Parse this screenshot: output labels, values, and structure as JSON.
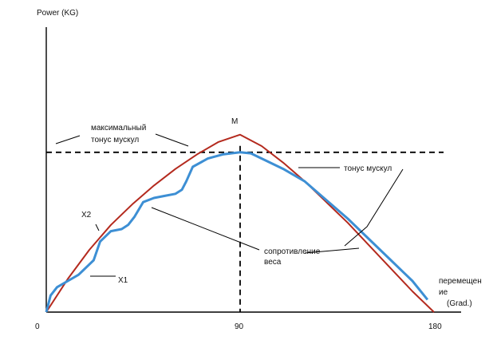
{
  "chart_data": {
    "type": "line",
    "ylabel": "Power (KG)",
    "xlabel": "перемещение (Grad.)",
    "xlabel_line1": "перемещен",
    "xlabel_line2": "ие",
    "xlabel_unit": "(Grad.)",
    "xlim": [
      0,
      185
    ],
    "ylim": [
      0,
      100
    ],
    "x_ticks": [
      "0",
      "90",
      "180"
    ],
    "x_tick_values": [
      0,
      90,
      180
    ],
    "grid": false,
    "series": [
      {
        "name": "сопротивление веса",
        "color": "#b42a1e",
        "x": [
          0,
          10,
          20,
          30,
          40,
          50,
          60,
          70,
          80,
          90,
          100,
          110,
          120,
          130,
          140,
          150,
          160,
          170,
          180
        ],
        "y": [
          0,
          16,
          30,
          42,
          52,
          61,
          69,
          76,
          82,
          85.5,
          80,
          72,
          63,
          53,
          43,
          32,
          21,
          10,
          0
        ]
      },
      {
        "name": "тонус мускул",
        "color": "#3d8fd4",
        "x": [
          0,
          2,
          5,
          10,
          15,
          17,
          19,
          22,
          25,
          30,
          35,
          38,
          41,
          45,
          50,
          55,
          60,
          63,
          65,
          68,
          75,
          82,
          90,
          95,
          100,
          110,
          120,
          130,
          140,
          150,
          160,
          170,
          177
        ],
        "y": [
          0,
          8,
          12,
          15,
          18,
          20,
          22,
          25,
          34,
          39,
          40,
          42,
          46,
          53,
          55,
          56,
          57,
          59,
          63,
          70,
          74,
          76,
          77,
          76.5,
          74,
          69,
          63,
          54,
          45,
          35,
          25,
          15,
          6
        ]
      }
    ],
    "max_tone_line": {
      "label_line1": "максимальный",
      "label_line2": "тонус мускул",
      "y": 77
    },
    "vertical_marker": {
      "x": 90,
      "label": "M"
    },
    "annotations": {
      "x1": "X1",
      "x2": "X2",
      "tone_label": "тонус мускул",
      "resistance_line1": "сопротивление",
      "resistance_line2": "веса"
    }
  }
}
